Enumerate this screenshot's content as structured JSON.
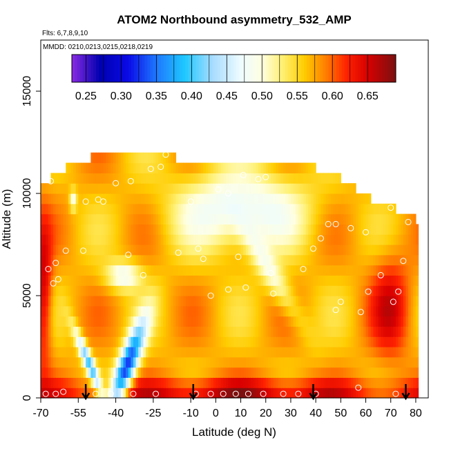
{
  "chart_data": {
    "type": "heatmap",
    "title": "ATOM2 Northbound asymmetry_532_AMP",
    "flights_label": "Flts: 6,7,8,9,10",
    "mmdd_label": "MMDD: 0210,0213,0215,0218,0219",
    "xlabel": "Latitude (deg N)",
    "ylabel": "Altitude (m)",
    "xlim": [
      -70,
      85
    ],
    "ylim": [
      0,
      17500
    ],
    "x_ticks": [
      -70,
      -55,
      -40,
      -25,
      -10,
      0,
      10,
      20,
      30,
      40,
      50,
      60,
      70,
      80
    ],
    "x_tick_labels": [
      "-70",
      "-55",
      "-40",
      "-25",
      "-10",
      "0",
      "10",
      "20",
      "30",
      "40",
      "50",
      "60",
      "70",
      "80"
    ],
    "y_ticks": [
      0,
      5000,
      10000,
      15000
    ],
    "y_tick_labels": [
      "0",
      "5000",
      "10000",
      "15000"
    ],
    "colorbar": {
      "range": [
        0.23,
        0.69
      ],
      "ticks": [
        0.25,
        0.3,
        0.35,
        0.4,
        0.45,
        0.5,
        0.55,
        0.6,
        0.65
      ],
      "tick_labels": [
        "0.25",
        "0.30",
        "0.35",
        "0.40",
        "0.45",
        "0.50",
        "0.55",
        "0.60",
        "0.65"
      ],
      "stops": [
        {
          "value": 0.23,
          "color": "#8a2be2"
        },
        {
          "value": 0.27,
          "color": "#0000b0"
        },
        {
          "value": 0.31,
          "color": "#0a0ae6"
        },
        {
          "value": 0.35,
          "color": "#1e78ff"
        },
        {
          "value": 0.39,
          "color": "#1ec8ff"
        },
        {
          "value": 0.43,
          "color": "#a8dcff"
        },
        {
          "value": 0.47,
          "color": "#eefcff"
        },
        {
          "value": 0.5,
          "color": "#ffffe0"
        },
        {
          "value": 0.53,
          "color": "#fff070"
        },
        {
          "value": 0.56,
          "color": "#ffcc00"
        },
        {
          "value": 0.59,
          "color": "#ff8000"
        },
        {
          "value": 0.62,
          "color": "#ff2200"
        },
        {
          "value": 0.65,
          "color": "#d80000"
        },
        {
          "value": 0.69,
          "color": "#7a1010"
        }
      ]
    },
    "arrows_lat": [
      -52,
      -9,
      39,
      76
    ],
    "altitude_bins_m": [
      0,
      500,
      1000,
      1500,
      2000,
      2500,
      3000,
      3500,
      4000,
      4500,
      5000,
      5500,
      6000,
      6500,
      7000,
      7500,
      8000,
      8500,
      9000,
      9500,
      10000,
      10500,
      11000,
      11500,
      12000
    ],
    "top_altitude_by_lat": [
      {
        "lat": -69,
        "top": 10500
      },
      {
        "lat": -66,
        "top": 11000
      },
      {
        "lat": -60,
        "top": 11500
      },
      {
        "lat": -50,
        "top": 12000
      },
      {
        "lat": -20,
        "top": 12000
      },
      {
        "lat": -18,
        "top": 12500
      },
      {
        "lat": -16,
        "top": 11500
      },
      {
        "lat": 25,
        "top": 11500
      },
      {
        "lat": 35,
        "top": 11500
      },
      {
        "lat": 40,
        "top": 11000
      },
      {
        "lat": 50,
        "top": 10500
      },
      {
        "lat": 56,
        "top": 10000
      },
      {
        "lat": 62,
        "top": 9500
      },
      {
        "lat": 68,
        "top": 9500
      },
      {
        "lat": 72,
        "top": 9000
      },
      {
        "lat": 80,
        "top": 8500
      }
    ],
    "field_features": [
      {
        "name": "background",
        "value": 0.57
      },
      {
        "name": "upper-central-minimum",
        "lat": 10,
        "alt": 9200,
        "value": 0.465
      },
      {
        "name": "lower-left-blue-band",
        "lat": -40,
        "alt": 1500,
        "value": 0.32
      },
      {
        "name": "southern-red-edge",
        "lat": -69,
        "alt": 5000,
        "value": 0.66
      },
      {
        "name": "surface-maximum",
        "lat": 10,
        "alt": 250,
        "value": 0.66
      },
      {
        "name": "east-red-band",
        "lat": 70,
        "alt": 4500,
        "value": 0.64
      }
    ],
    "observation_points": [
      {
        "lat": -68,
        "alt": 200
      },
      {
        "lat": -64,
        "alt": 200
      },
      {
        "lat": -61,
        "alt": 300
      },
      {
        "lat": -48,
        "alt": 200
      },
      {
        "lat": -42,
        "alt": 200
      },
      {
        "lat": -33,
        "alt": 200
      },
      {
        "lat": -24,
        "alt": 200
      },
      {
        "lat": -8,
        "alt": 200
      },
      {
        "lat": -2,
        "alt": 200
      },
      {
        "lat": 3,
        "alt": 200
      },
      {
        "lat": 8,
        "alt": 200
      },
      {
        "lat": 13,
        "alt": 200
      },
      {
        "lat": 19,
        "alt": 200
      },
      {
        "lat": 27,
        "alt": 200
      },
      {
        "lat": 33,
        "alt": 200
      },
      {
        "lat": 40,
        "alt": 200
      },
      {
        "lat": 57,
        "alt": 500
      },
      {
        "lat": 72,
        "alt": 200
      },
      {
        "lat": -65,
        "alt": 5600
      },
      {
        "lat": -63,
        "alt": 5800
      },
      {
        "lat": -67,
        "alt": 6300
      },
      {
        "lat": -64,
        "alt": 6600
      },
      {
        "lat": -60,
        "alt": 7200
      },
      {
        "lat": -53,
        "alt": 7200
      },
      {
        "lat": -35,
        "alt": 7000
      },
      {
        "lat": -29,
        "alt": 6000
      },
      {
        "lat": -15,
        "alt": 7100
      },
      {
        "lat": -7,
        "alt": 7300
      },
      {
        "lat": -5,
        "alt": 6800
      },
      {
        "lat": 9,
        "alt": 6900
      },
      {
        "lat": 22,
        "alt": 6100
      },
      {
        "lat": 35,
        "alt": 6300
      },
      {
        "lat": 39,
        "alt": 7300
      },
      {
        "lat": 42,
        "alt": 7800
      },
      {
        "lat": 48,
        "alt": 4300
      },
      {
        "lat": 50,
        "alt": 4700
      },
      {
        "lat": 58,
        "alt": 4200
      },
      {
        "lat": 61,
        "alt": 5200
      },
      {
        "lat": 66,
        "alt": 6000
      },
      {
        "lat": 71,
        "alt": 4700
      },
      {
        "lat": 73,
        "alt": 5200
      },
      {
        "lat": 75,
        "alt": 6700
      },
      {
        "lat": -2,
        "alt": 5000
      },
      {
        "lat": 5,
        "alt": 5300
      },
      {
        "lat": 12,
        "alt": 5400
      },
      {
        "lat": 23,
        "alt": 5100
      },
      {
        "lat": -45,
        "alt": 9600
      },
      {
        "lat": -47,
        "alt": 9700
      },
      {
        "lat": -52,
        "alt": 9600
      },
      {
        "lat": -10,
        "alt": 9600
      },
      {
        "lat": 1,
        "alt": 10200
      },
      {
        "lat": 5,
        "alt": 10000
      },
      {
        "lat": 11,
        "alt": 10900
      },
      {
        "lat": 17,
        "alt": 10700
      },
      {
        "lat": 20,
        "alt": 10800
      },
      {
        "lat": 45,
        "alt": 8500
      },
      {
        "lat": 48,
        "alt": 8500
      },
      {
        "lat": 54,
        "alt": 8300
      },
      {
        "lat": 60,
        "alt": 8100
      },
      {
        "lat": 70,
        "alt": 9300
      },
      {
        "lat": 77,
        "alt": 8600
      },
      {
        "lat": -63,
        "alt": 11200
      },
      {
        "lat": -58,
        "alt": 11900
      },
      {
        "lat": -56,
        "alt": 11800
      },
      {
        "lat": -26,
        "alt": 11200
      },
      {
        "lat": -22,
        "alt": 11300
      },
      {
        "lat": -20,
        "alt": 11900
      },
      {
        "lat": -40,
        "alt": 10500
      },
      {
        "lat": -34,
        "alt": 10600
      },
      {
        "lat": 30,
        "alt": 11700
      },
      {
        "lat": 41,
        "alt": 11900
      },
      {
        "lat": -66,
        "alt": 10600
      }
    ]
  }
}
